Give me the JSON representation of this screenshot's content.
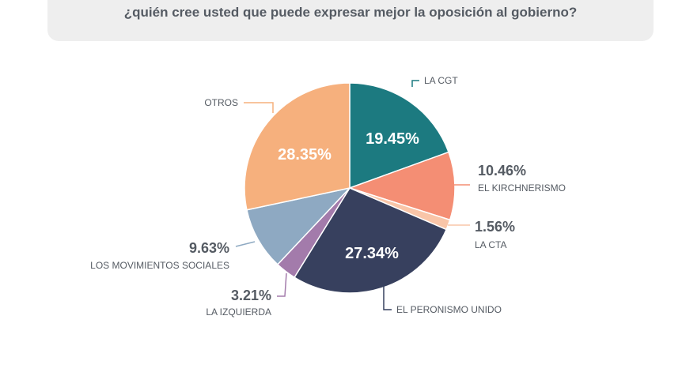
{
  "chart_data": {
    "type": "pie",
    "title": "¿quién cree usted que puede expresar mejor la oposición al gobierno?",
    "slices": [
      {
        "label": "LA CGT",
        "value": 19.45,
        "value_label": "19.45%",
        "color": "#1c7a80",
        "label_inside": true
      },
      {
        "label": "EL KIRCHNERISMO",
        "value": 10.46,
        "value_label": "10.46%",
        "color": "#f48e74",
        "label_inside": false
      },
      {
        "label": "LA CTA",
        "value": 1.56,
        "value_label": "1.56%",
        "color": "#f9c5a8",
        "label_inside": false
      },
      {
        "label": "EL PERONISMO UNIDO",
        "value": 27.34,
        "value_label": "27.34%",
        "color": "#37405e",
        "label_inside": true
      },
      {
        "label": "LA IZQUIERDA",
        "value": 3.21,
        "value_label": "3.21%",
        "color": "#a37bab",
        "label_inside": false
      },
      {
        "label": "LOS MOVIMIENTOS SOCIALES",
        "value": 9.63,
        "value_label": "9.63%",
        "color": "#8ea9c2",
        "label_inside": false
      },
      {
        "label": "OTROS",
        "value": 28.35,
        "value_label": "28.35%",
        "color": "#f6b07d",
        "label_inside": true
      }
    ]
  }
}
